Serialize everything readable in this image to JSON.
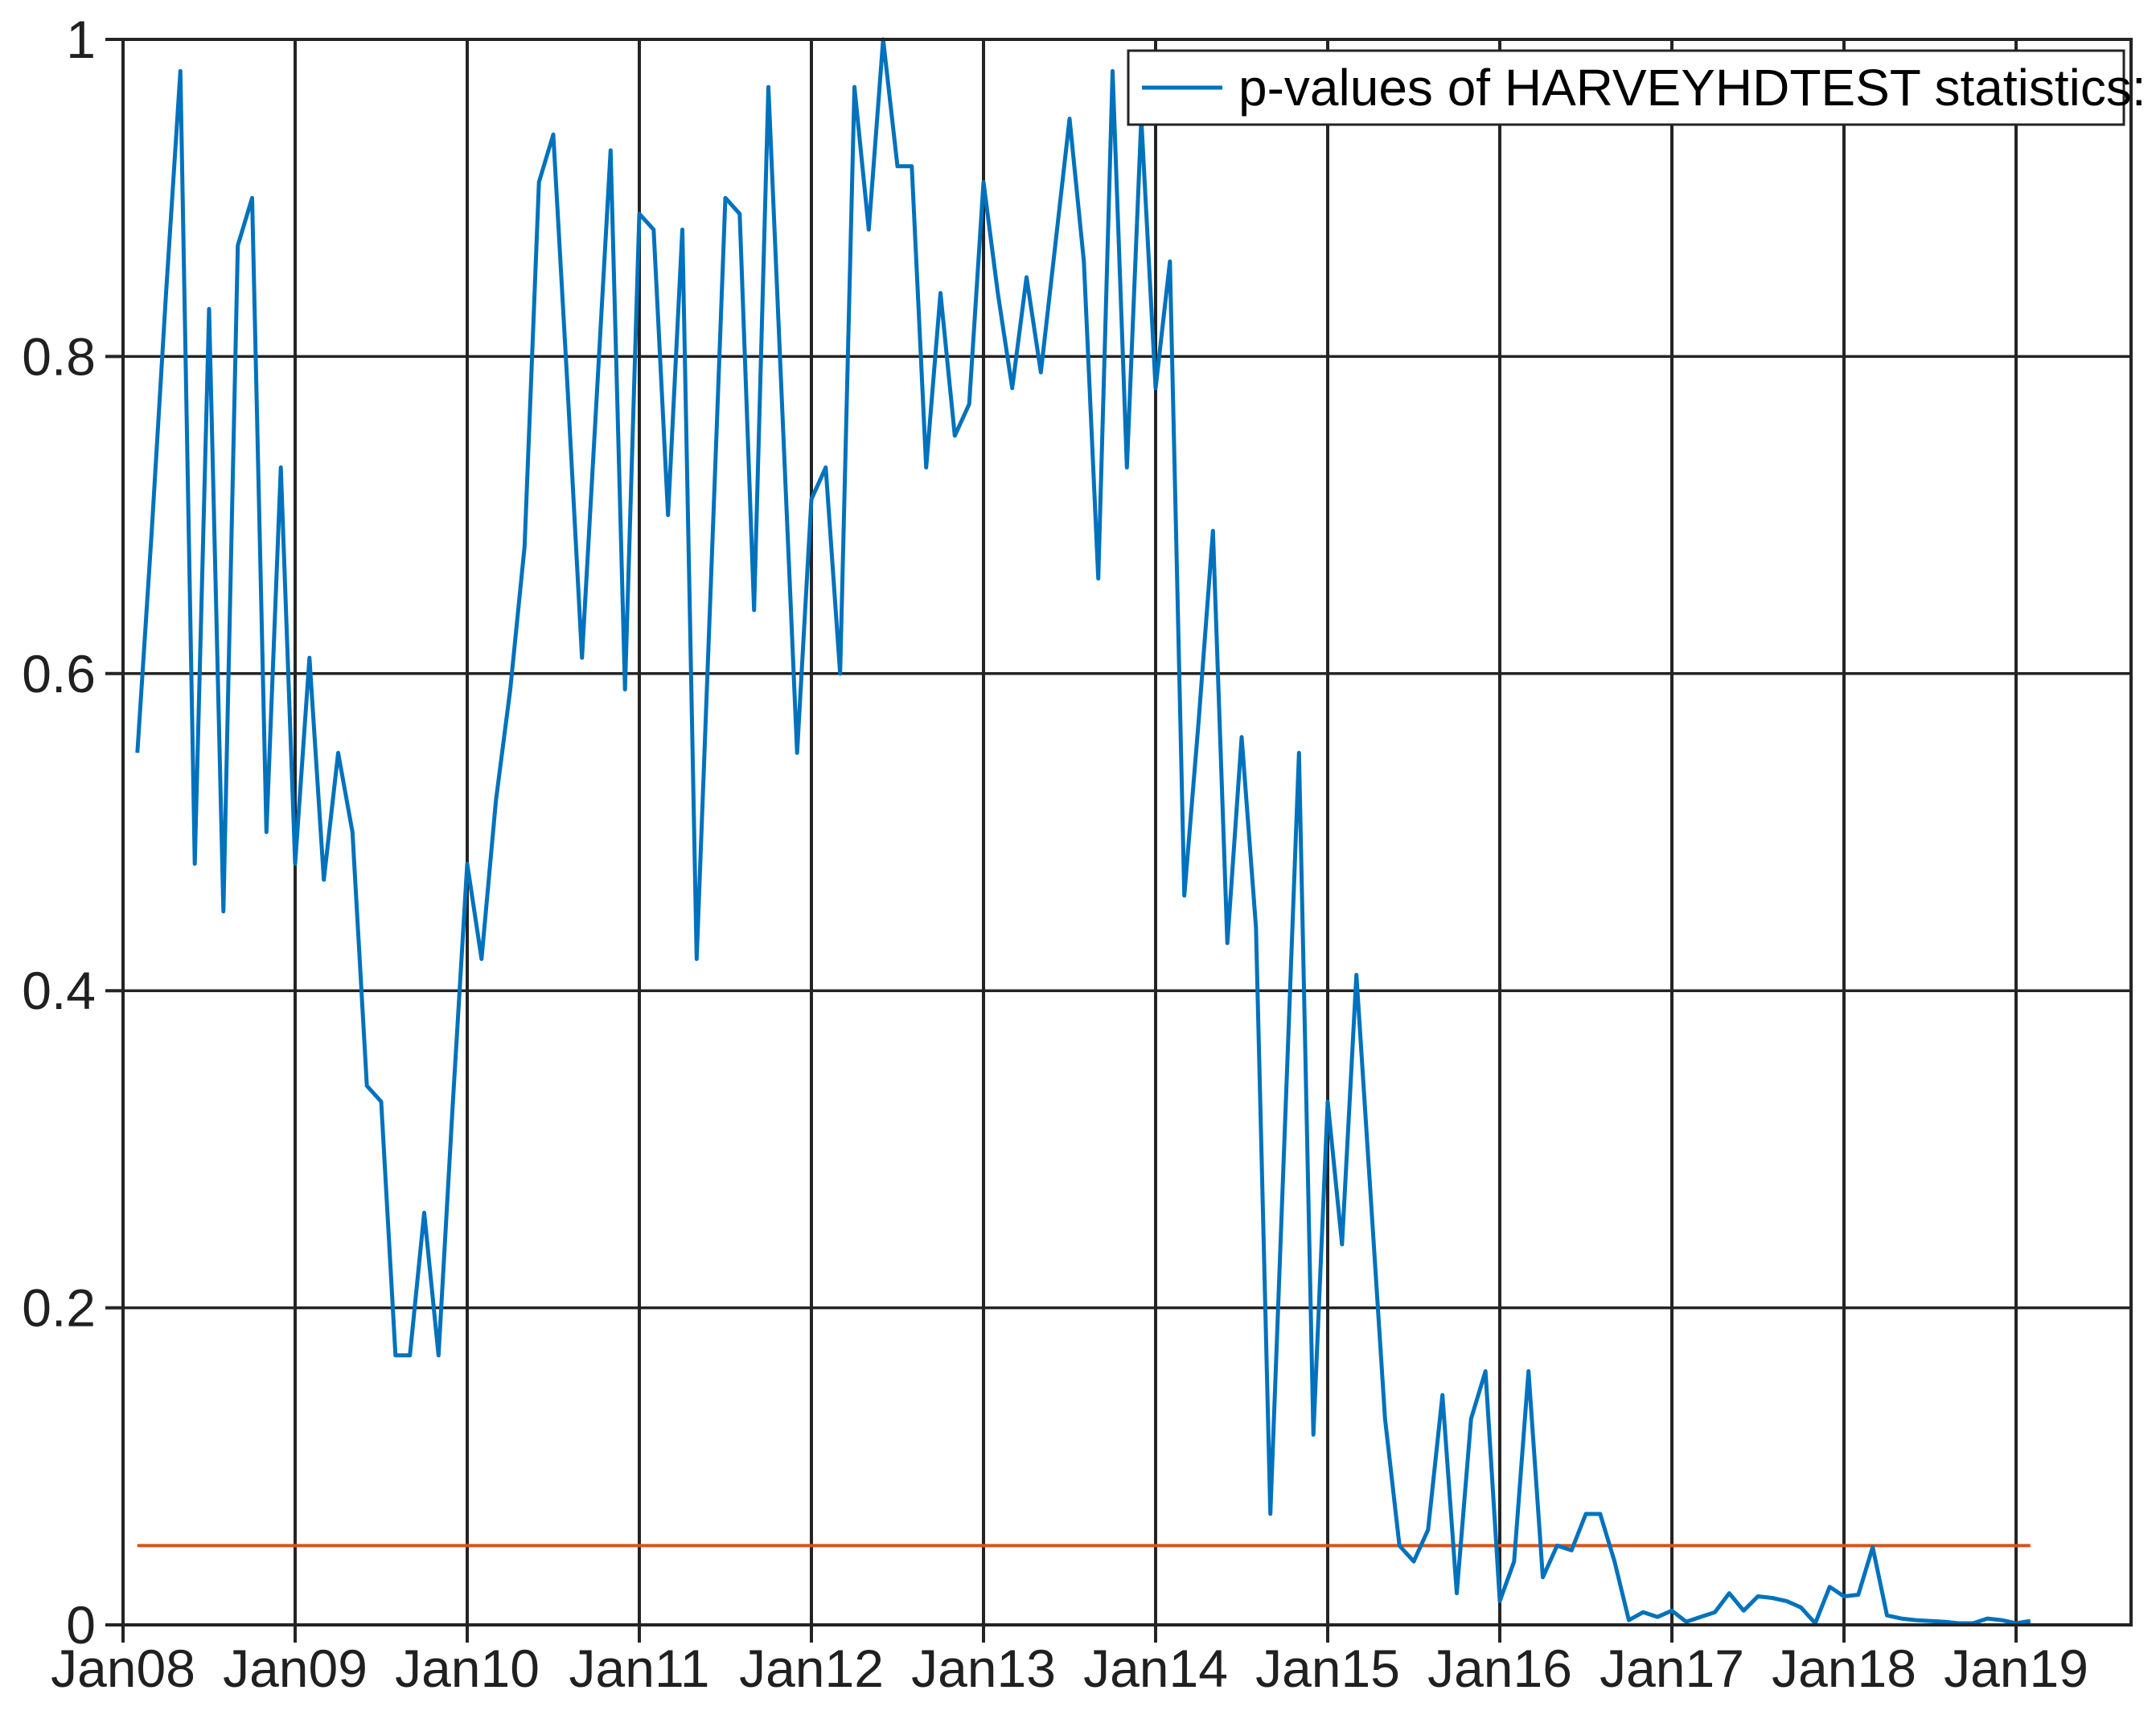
{
  "figure": {
    "kind": "matlab-style-figure",
    "background": "#ffffff"
  },
  "legend": {
    "label": "p-values of HARVEYHDTEST statistics:",
    "position": "top-right",
    "sample_series": "p-values"
  },
  "axes": {
    "xticks": [
      "Jan08",
      "Jan09",
      "Jan10",
      "Jan11",
      "Jan12",
      "Jan13",
      "Jan14",
      "Jan15",
      "Jan16",
      "Jan17",
      "Jan18",
      "Jan19"
    ],
    "yticks": [
      "0",
      "0.2",
      "0.4",
      "0.6",
      "0.8",
      "1"
    ],
    "ytick_values": [
      0,
      0.2,
      0.4,
      0.6,
      0.8,
      1
    ],
    "grid": "on"
  },
  "colors": {
    "series_blue": "#0072BD",
    "threshold_orange": "#D95319",
    "axis_and_grid": "#242424",
    "text": "#202020",
    "background": "#ffffff"
  },
  "chart_data": {
    "type": "line",
    "title": "",
    "xlabel": "",
    "ylabel": "",
    "ylim": [
      0,
      1
    ],
    "x_range": [
      "Jan 2008",
      "Jan 2019 (data to Feb 2019)"
    ],
    "cadence": "monthly",
    "grid": true,
    "legend_position": "top-right",
    "xtick_labels": [
      "Jan08",
      "Jan09",
      "Jan10",
      "Jan11",
      "Jan12",
      "Jan13",
      "Jan14",
      "Jan15",
      "Jan16",
      "Jan17",
      "Jan18",
      "Jan19"
    ],
    "series": [
      {
        "name": "p-values of HARVEYHDTEST statistics:",
        "color": "#0072BD",
        "first_month": "2008-02",
        "first_month_offset_from_Jan08": 1,
        "months": [
          "Feb08",
          "Mar08",
          "Apr08",
          "May08",
          "Jun08",
          "Jul08",
          "Aug08",
          "Sep08",
          "Oct08",
          "Nov08",
          "Dec08",
          "Jan09",
          "Feb09",
          "Mar09",
          "Apr09",
          "May09",
          "Jun09",
          "Jul09",
          "Aug09",
          "Sep09",
          "Oct09",
          "Nov09",
          "Dec09",
          "Jan10",
          "Feb10",
          "Mar10",
          "Apr10",
          "May10",
          "Jun10",
          "Jul10",
          "Aug10",
          "Sep10",
          "Oct10",
          "Nov10",
          "Dec10",
          "Jan11",
          "Feb11",
          "Mar11",
          "Apr11",
          "May11",
          "Jun11",
          "Jul11",
          "Aug11",
          "Sep11",
          "Oct11",
          "Nov11",
          "Dec11",
          "Jan12",
          "Feb12",
          "Mar12",
          "Apr12",
          "May12",
          "Jun12",
          "Jul12",
          "Aug12",
          "Sep12",
          "Oct12",
          "Nov12",
          "Dec12",
          "Jan13",
          "Feb13",
          "Mar13",
          "Apr13",
          "May13",
          "Jun13",
          "Jul13",
          "Aug13",
          "Sep13",
          "Oct13",
          "Nov13",
          "Dec13",
          "Jan14",
          "Feb14",
          "Mar14",
          "Apr14",
          "May14",
          "Jun14",
          "Jul14",
          "Aug14",
          "Sep14",
          "Oct14",
          "Nov14",
          "Dec14",
          "Jan15",
          "Feb15",
          "Mar15",
          "Apr15",
          "May15",
          "Jun15",
          "Jul15",
          "Aug15",
          "Sep15",
          "Oct15",
          "Nov15",
          "Dec15",
          "Jan16",
          "Feb16",
          "Mar16",
          "Apr16",
          "May16",
          "Jun16",
          "Jul16",
          "Aug16",
          "Sep16",
          "Oct16",
          "Nov16",
          "Dec16",
          "Jan17",
          "Feb17",
          "Mar17",
          "Apr17",
          "May17",
          "Jun17",
          "Jul17",
          "Aug17",
          "Sep17",
          "Oct17",
          "Nov17",
          "Dec17",
          "Jan18",
          "Feb18",
          "Mar18",
          "Apr18",
          "May18",
          "Jun18",
          "Jul18",
          "Aug18",
          "Sep18",
          "Oct18",
          "Nov18",
          "Dec18",
          "Jan19",
          "Feb19"
        ],
        "values": [
          0.55,
          0.69,
          0.84,
          0.98,
          0.48,
          0.83,
          0.45,
          0.87,
          0.9,
          0.5,
          0.73,
          0.48,
          0.61,
          0.47,
          0.55,
          0.5,
          0.34,
          0.33,
          0.17,
          0.17,
          0.26,
          0.17,
          0.33,
          0.48,
          0.42,
          0.52,
          0.59,
          0.68,
          0.91,
          0.94,
          0.78,
          0.61,
          0.77,
          0.93,
          0.59,
          0.89,
          0.88,
          0.7,
          0.88,
          0.42,
          0.66,
          0.9,
          0.89,
          0.64,
          0.97,
          0.76,
          0.55,
          0.71,
          0.73,
          0.6,
          0.97,
          0.88,
          1.0,
          0.92,
          0.92,
          0.73,
          0.84,
          0.75,
          0.77,
          0.91,
          0.84,
          0.78,
          0.85,
          0.79,
          0.87,
          0.95,
          0.86,
          0.66,
          0.98,
          0.73,
          0.95,
          0.78,
          0.86,
          0.46,
          0.57,
          0.69,
          0.43,
          0.56,
          0.44,
          0.07,
          0.31,
          0.55,
          0.12,
          0.33,
          0.24,
          0.41,
          0.27,
          0.13,
          0.05,
          0.04,
          0.06,
          0.145,
          0.02,
          0.13,
          0.16,
          0.015,
          0.04,
          0.16,
          0.03,
          0.05,
          0.047,
          0.07,
          0.07,
          0.04,
          0.003,
          0.008,
          0.005,
          0.009,
          0.002,
          0.005,
          0.008,
          0.02,
          0.009,
          0.018,
          0.017,
          0.015,
          0.011,
          0.001,
          0.024,
          0.018,
          0.019,
          0.049,
          0.006,
          0.004,
          0.003,
          0.0025,
          0.002,
          0.001,
          0.001,
          0.004,
          0.003,
          0.001,
          0.0025
        ]
      },
      {
        "name": "significance threshold (horizontal reference line, unlabeled in legend)",
        "color": "#D95319",
        "constant_value": 0.05,
        "spans": [
          "2008-02",
          "2019-02"
        ]
      }
    ]
  }
}
